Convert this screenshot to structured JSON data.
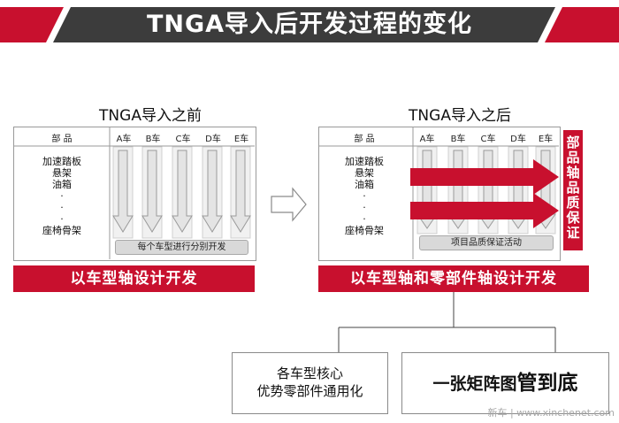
{
  "title": "TNGA导入后开发过程的变化",
  "before": {
    "heading": "TNGA导入之前",
    "parts_header": "部 品",
    "cars": [
      "A车",
      "B车",
      "C车",
      "D车",
      "E车"
    ],
    "parts": [
      "加速踏板",
      "悬架",
      "油箱",
      "·",
      "·",
      "·",
      "座椅骨架"
    ],
    "bar_label": "每个车型进行分别开发",
    "label": "以车型轴设计开发"
  },
  "after": {
    "heading": "TNGA导入之后",
    "parts_header": "部 品",
    "cars": [
      "A车",
      "B车",
      "C车",
      "D车",
      "E车"
    ],
    "parts": [
      "加速踏板",
      "悬架",
      "油箱",
      "·",
      "·",
      "·",
      "座椅骨架"
    ],
    "bar_label": "项目品质保证活动",
    "vertical_label": "部品轴品质保证",
    "label": "以车型轴和零部件轴设计开发"
  },
  "outcomes": {
    "left_line1": "各车型核心",
    "left_line2": "优势零部件通用化",
    "right_part1": "一张矩阵图",
    "right_part2": "管到底"
  },
  "watermark": "新车 | www.xinchenet.com",
  "colors": {
    "brand_red": "#c8102e",
    "banner_dark": "#3c3c3c",
    "gray": "#d9d9d9"
  }
}
